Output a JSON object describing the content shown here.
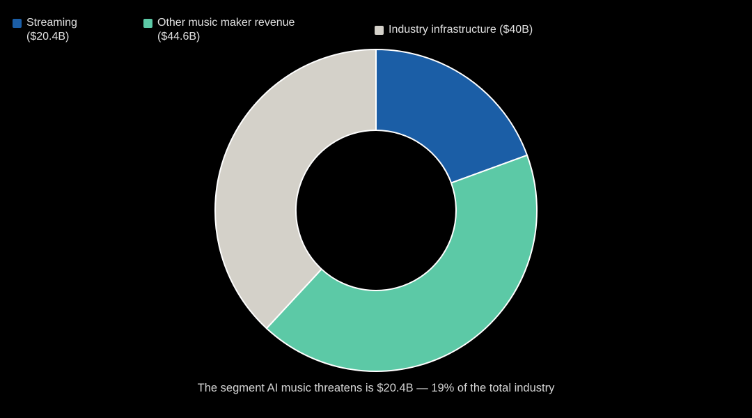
{
  "chart_data": {
    "type": "pie",
    "donut": true,
    "slices": [
      {
        "label": "Streaming",
        "legend_label": "Streaming\n($20.4B)",
        "value": 20.4,
        "color": "#1b5ea6"
      },
      {
        "label": "Other music maker revenue",
        "legend_label": "Other music maker revenue\n($44.6B)",
        "value": 44.6,
        "color": "#5cc9a6"
      },
      {
        "label": "Industry infrastructure",
        "legend_label": "Industry infrastructure ($40B)",
        "value": 40,
        "color": "#d4d1c9"
      }
    ],
    "start_angle_deg": 0,
    "direction": "clockwise",
    "legend_position": "top",
    "caption": "The segment AI music threatens is $20.4B — 19% of the total industry"
  }
}
